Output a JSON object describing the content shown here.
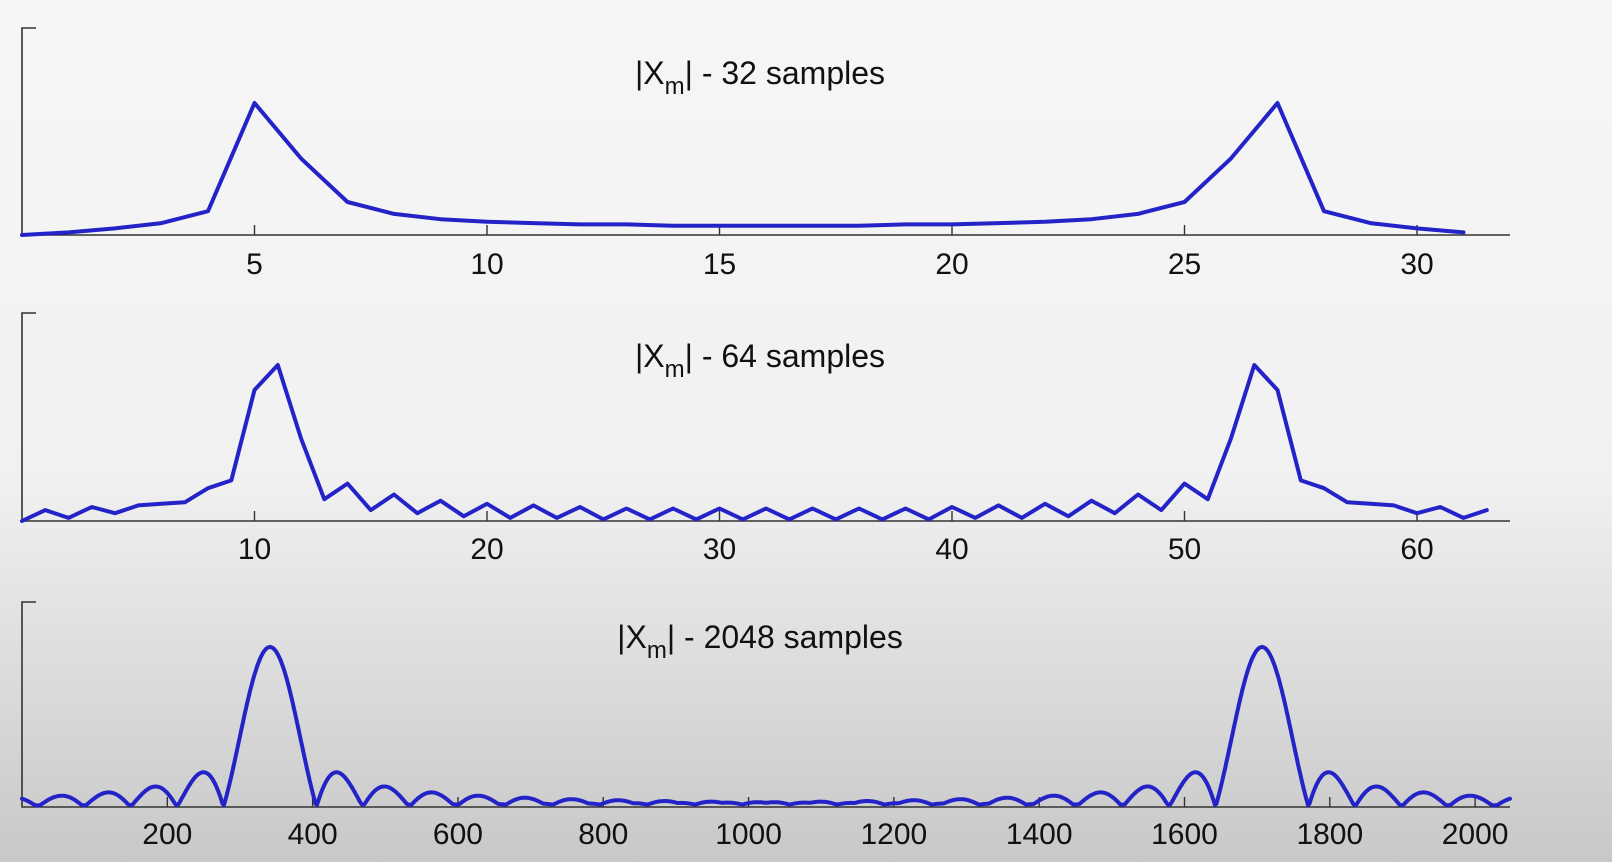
{
  "chart_data": [
    {
      "type": "line",
      "title": {
        "prefix": "|X",
        "subscript": "m",
        "suffix": "| - 32 samples"
      },
      "xlim": [
        0,
        32
      ],
      "xticks": [
        5,
        10,
        15,
        20,
        25,
        30
      ],
      "x": [
        0,
        1,
        2,
        3,
        4,
        5,
        6,
        7,
        8,
        9,
        10,
        11,
        12,
        13,
        14,
        15,
        16,
        17,
        18,
        19,
        20,
        21,
        22,
        23,
        24,
        25,
        26,
        27,
        28,
        29,
        30,
        31
      ],
      "values": [
        0.0,
        0.02,
        0.05,
        0.09,
        0.18,
        1.0,
        0.58,
        0.25,
        0.16,
        0.12,
        0.1,
        0.09,
        0.08,
        0.08,
        0.07,
        0.07,
        0.07,
        0.07,
        0.07,
        0.08,
        0.08,
        0.09,
        0.1,
        0.12,
        0.16,
        0.25,
        0.58,
        1.0,
        0.18,
        0.09,
        0.05,
        0.02
      ],
      "color": "#2323c8"
    },
    {
      "type": "line",
      "title": {
        "prefix": "|X",
        "subscript": "m",
        "suffix": "| - 64 samples"
      },
      "xlim": [
        0,
        64
      ],
      "xticks": [
        10,
        20,
        30,
        40,
        50,
        60
      ],
      "x": [
        0,
        1,
        2,
        3,
        4,
        5,
        6,
        7,
        8,
        9,
        10,
        11,
        12,
        13,
        14,
        15,
        16,
        17,
        18,
        19,
        20,
        21,
        22,
        23,
        24,
        25,
        26,
        27,
        28,
        29,
        30,
        31,
        32,
        33,
        34,
        35,
        36,
        37,
        38,
        39,
        40,
        41,
        42,
        43,
        44,
        45,
        46,
        47,
        48,
        49,
        50,
        51,
        52,
        53,
        54,
        55,
        56,
        57,
        58,
        59,
        60,
        61,
        62,
        63
      ],
      "values": [
        0.0,
        0.07,
        0.02,
        0.09,
        0.05,
        0.1,
        0.11,
        0.12,
        0.21,
        0.26,
        0.84,
        1.0,
        0.53,
        0.14,
        0.24,
        0.07,
        0.17,
        0.05,
        0.13,
        0.03,
        0.11,
        0.02,
        0.1,
        0.02,
        0.09,
        0.01,
        0.08,
        0.01,
        0.08,
        0.01,
        0.08,
        0.01,
        0.08,
        0.01,
        0.08,
        0.01,
        0.08,
        0.01,
        0.08,
        0.01,
        0.09,
        0.02,
        0.1,
        0.02,
        0.11,
        0.03,
        0.13,
        0.05,
        0.17,
        0.07,
        0.24,
        0.14,
        0.53,
        1.0,
        0.84,
        0.26,
        0.21,
        0.12,
        0.11,
        0.1,
        0.05,
        0.09,
        0.02,
        0.07
      ],
      "color": "#2323c8"
    },
    {
      "type": "line",
      "title": {
        "prefix": "|X",
        "subscript": "m",
        "suffix": "| - 2048 samples"
      },
      "xlim": [
        0,
        2048
      ],
      "xticks": [
        200,
        400,
        600,
        800,
        1000,
        1200,
        1400,
        1600,
        1800,
        2000
      ],
      "peak_bins": [
        341.3,
        1706.7
      ],
      "main_lobe_halfwidth": 64,
      "sidelobe_heights": [
        [
          0.0,
          0.07,
          0.09,
          0.13,
          0.16,
          0.25,
          1.0,
          0.3,
          0.23,
          0.17,
          0.14,
          0.12,
          0.1,
          0.09,
          0.08,
          0.07,
          0.07,
          0.06,
          0.06,
          0.05,
          0.05,
          0.05,
          0.05,
          0.05,
          0.05,
          0.05,
          0.05,
          0.05,
          0.06,
          0.06,
          0.07,
          0.07,
          0.08,
          0.09,
          0.1,
          0.12,
          0.14,
          0.17,
          0.23,
          0.3,
          1.0,
          0.25,
          0.16,
          0.13,
          0.09,
          0.07,
          0.0
        ]
      ],
      "color": "#2323c8"
    }
  ]
}
